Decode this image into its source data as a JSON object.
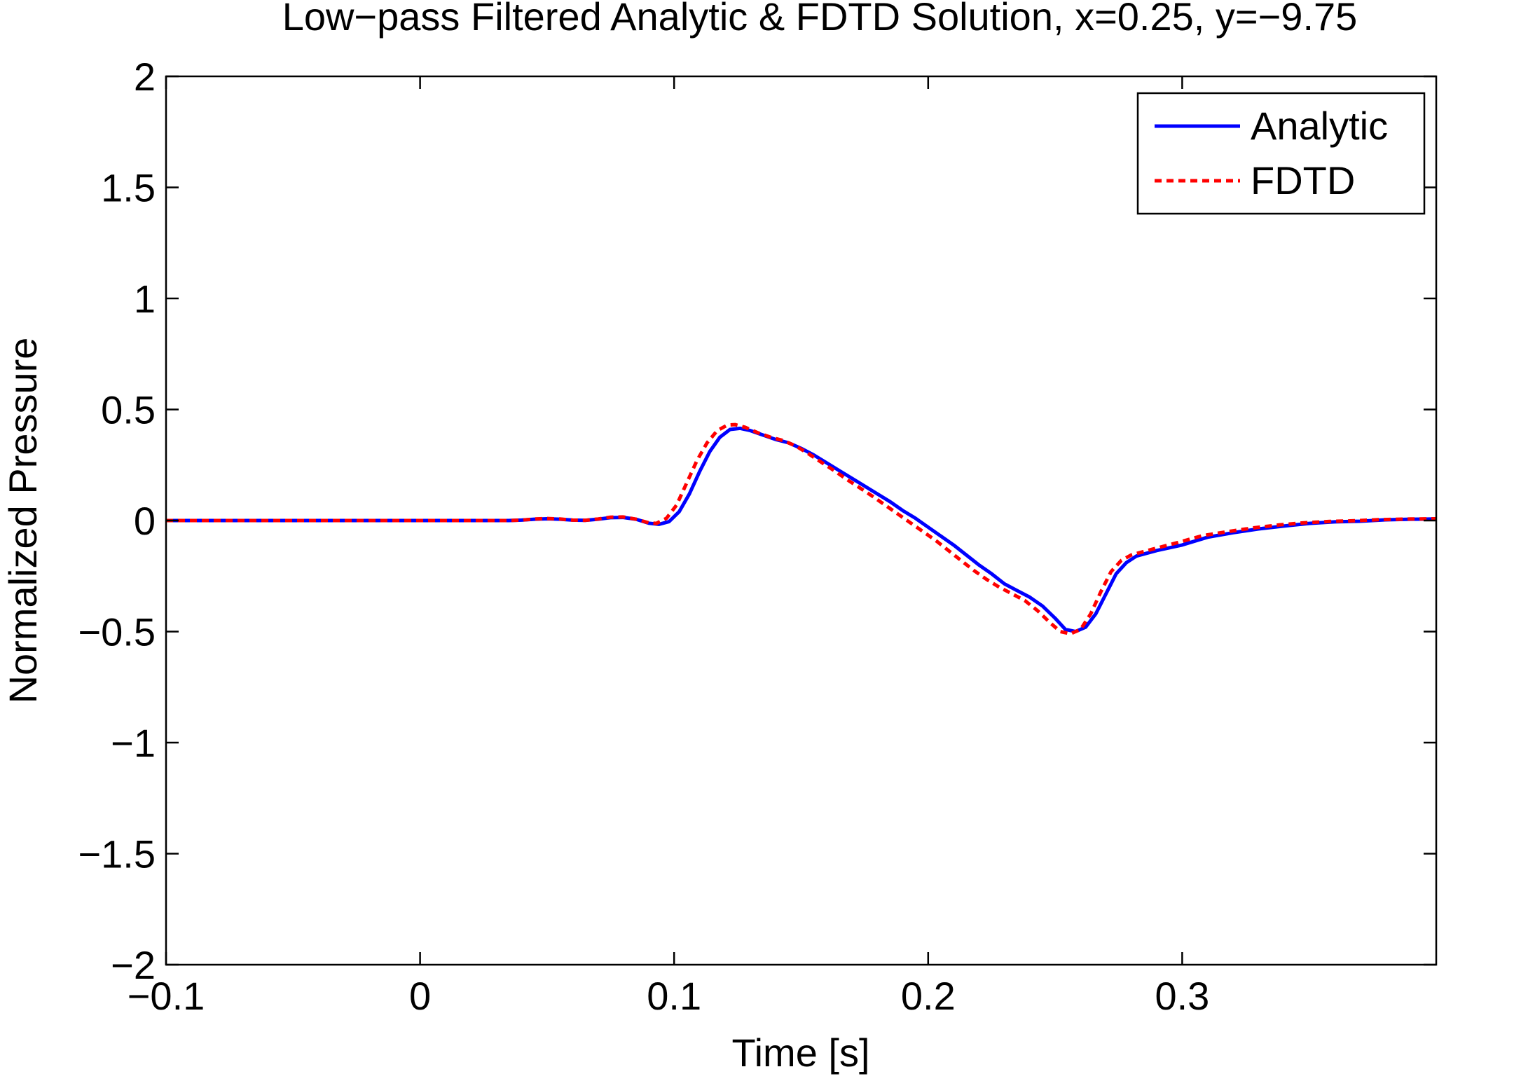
{
  "chart_data": {
    "type": "line",
    "title": "Low−pass Filtered Analytic & FDTD Solution, x=0.25, y=−9.75",
    "xlabel": "Time [s]",
    "ylabel": "Normalized Pressure",
    "xlim": [
      -0.1,
      0.4
    ],
    "ylim": [
      -2,
      2
    ],
    "xticks": [
      -0.1,
      0,
      0.1,
      0.2,
      0.3
    ],
    "xtick_labels": [
      "−0.1",
      "0",
      "0.1",
      "0.2",
      "0.3"
    ],
    "yticks": [
      -2,
      -1.5,
      -1,
      -0.5,
      0,
      0.5,
      1,
      1.5,
      2
    ],
    "ytick_labels": [
      "−2",
      "−1.5",
      "−1",
      "−0.5",
      "0",
      "0.5",
      "1",
      "1.5",
      "2"
    ],
    "grid": false,
    "legend_position": "top-right",
    "series": [
      {
        "name": "Analytic",
        "color": "#0000ff",
        "style": "solid",
        "points": [
          [
            -0.1,
            0
          ],
          [
            -0.05,
            0
          ],
          [
            0.0,
            0
          ],
          [
            0.035,
            0
          ],
          [
            0.04,
            0.002
          ],
          [
            0.045,
            0.006
          ],
          [
            0.05,
            0.008
          ],
          [
            0.055,
            0.006
          ],
          [
            0.06,
            0.002
          ],
          [
            0.065,
            0.001
          ],
          [
            0.07,
            0.006
          ],
          [
            0.075,
            0.013
          ],
          [
            0.08,
            0.014
          ],
          [
            0.085,
            0.006
          ],
          [
            0.09,
            -0.012
          ],
          [
            0.094,
            -0.017
          ],
          [
            0.098,
            -0.005
          ],
          [
            0.102,
            0.04
          ],
          [
            0.106,
            0.12
          ],
          [
            0.11,
            0.22
          ],
          [
            0.114,
            0.31
          ],
          [
            0.118,
            0.375
          ],
          [
            0.122,
            0.41
          ],
          [
            0.126,
            0.415
          ],
          [
            0.13,
            0.405
          ],
          [
            0.135,
            0.385
          ],
          [
            0.14,
            0.365
          ],
          [
            0.145,
            0.35
          ],
          [
            0.15,
            0.325
          ],
          [
            0.155,
            0.295
          ],
          [
            0.16,
            0.26
          ],
          [
            0.165,
            0.225
          ],
          [
            0.17,
            0.19
          ],
          [
            0.175,
            0.155
          ],
          [
            0.18,
            0.12
          ],
          [
            0.185,
            0.085
          ],
          [
            0.19,
            0.045
          ],
          [
            0.195,
            0.01
          ],
          [
            0.2,
            -0.03
          ],
          [
            0.205,
            -0.07
          ],
          [
            0.21,
            -0.11
          ],
          [
            0.215,
            -0.155
          ],
          [
            0.22,
            -0.2
          ],
          [
            0.225,
            -0.24
          ],
          [
            0.23,
            -0.285
          ],
          [
            0.235,
            -0.315
          ],
          [
            0.24,
            -0.345
          ],
          [
            0.245,
            -0.385
          ],
          [
            0.25,
            -0.44
          ],
          [
            0.254,
            -0.49
          ],
          [
            0.258,
            -0.5
          ],
          [
            0.262,
            -0.48
          ],
          [
            0.266,
            -0.42
          ],
          [
            0.27,
            -0.33
          ],
          [
            0.274,
            -0.24
          ],
          [
            0.278,
            -0.19
          ],
          [
            0.282,
            -0.16
          ],
          [
            0.29,
            -0.135
          ],
          [
            0.3,
            -0.11
          ],
          [
            0.31,
            -0.075
          ],
          [
            0.32,
            -0.055
          ],
          [
            0.33,
            -0.038
          ],
          [
            0.34,
            -0.025
          ],
          [
            0.35,
            -0.013
          ],
          [
            0.36,
            -0.006
          ],
          [
            0.37,
            -0.003
          ],
          [
            0.38,
            0.003
          ],
          [
            0.39,
            0.006
          ],
          [
            0.4,
            0.007
          ]
        ]
      },
      {
        "name": "FDTD",
        "color": "#ff0000",
        "style": "dashed",
        "points": [
          [
            -0.1,
            0
          ],
          [
            -0.05,
            0
          ],
          [
            0.0,
            0
          ],
          [
            0.035,
            0
          ],
          [
            0.04,
            0.002
          ],
          [
            0.045,
            0.007
          ],
          [
            0.05,
            0.009
          ],
          [
            0.055,
            0.007
          ],
          [
            0.06,
            0.002
          ],
          [
            0.065,
            0.001
          ],
          [
            0.07,
            0.007
          ],
          [
            0.075,
            0.015
          ],
          [
            0.08,
            0.016
          ],
          [
            0.085,
            0.006
          ],
          [
            0.09,
            -0.01
          ],
          [
            0.093,
            -0.013
          ],
          [
            0.097,
            0.01
          ],
          [
            0.101,
            0.07
          ],
          [
            0.105,
            0.17
          ],
          [
            0.109,
            0.27
          ],
          [
            0.113,
            0.35
          ],
          [
            0.117,
            0.405
          ],
          [
            0.121,
            0.43
          ],
          [
            0.124,
            0.432
          ],
          [
            0.128,
            0.42
          ],
          [
            0.133,
            0.395
          ],
          [
            0.138,
            0.375
          ],
          [
            0.143,
            0.36
          ],
          [
            0.148,
            0.335
          ],
          [
            0.153,
            0.3
          ],
          [
            0.158,
            0.262
          ],
          [
            0.163,
            0.225
          ],
          [
            0.168,
            0.185
          ],
          [
            0.173,
            0.148
          ],
          [
            0.178,
            0.11
          ],
          [
            0.183,
            0.07
          ],
          [
            0.188,
            0.03
          ],
          [
            0.193,
            -0.01
          ],
          [
            0.198,
            -0.05
          ],
          [
            0.203,
            -0.09
          ],
          [
            0.208,
            -0.135
          ],
          [
            0.213,
            -0.18
          ],
          [
            0.218,
            -0.225
          ],
          [
            0.223,
            -0.265
          ],
          [
            0.228,
            -0.3
          ],
          [
            0.233,
            -0.33
          ],
          [
            0.238,
            -0.36
          ],
          [
            0.243,
            -0.405
          ],
          [
            0.248,
            -0.46
          ],
          [
            0.252,
            -0.5
          ],
          [
            0.256,
            -0.51
          ],
          [
            0.26,
            -0.49
          ],
          [
            0.264,
            -0.42
          ],
          [
            0.268,
            -0.32
          ],
          [
            0.272,
            -0.23
          ],
          [
            0.276,
            -0.18
          ],
          [
            0.28,
            -0.155
          ],
          [
            0.288,
            -0.13
          ],
          [
            0.298,
            -0.1
          ],
          [
            0.308,
            -0.068
          ],
          [
            0.318,
            -0.05
          ],
          [
            0.328,
            -0.033
          ],
          [
            0.338,
            -0.02
          ],
          [
            0.348,
            -0.01
          ],
          [
            0.358,
            -0.004
          ],
          [
            0.368,
            -0.001
          ],
          [
            0.378,
            0.004
          ],
          [
            0.39,
            0.007
          ],
          [
            0.4,
            0.008
          ]
        ]
      }
    ]
  }
}
